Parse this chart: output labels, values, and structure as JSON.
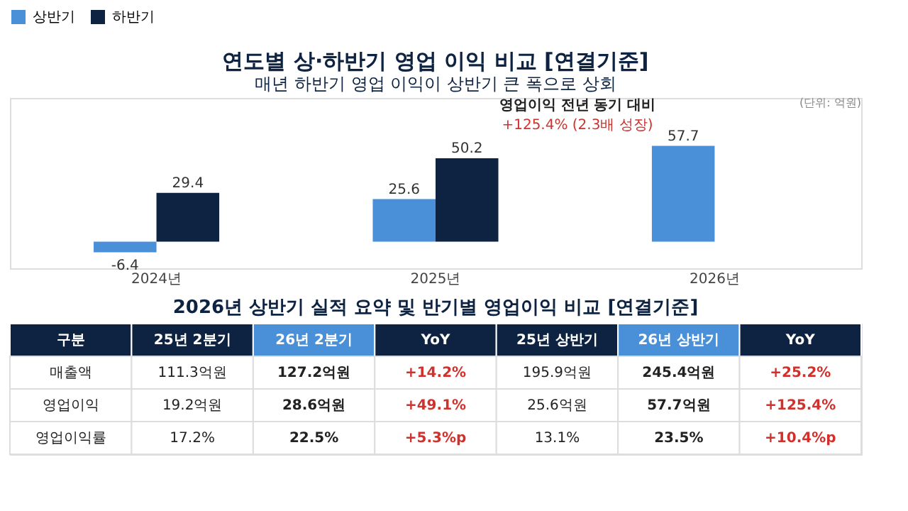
{
  "chart_data": {
    "type": "bar",
    "title": "연도별 상·하반기 영업 이익 비교 [연결기준]",
    "subtitle": "매년 하반기 영업 이익이 상반기 큰 폭으로 상회",
    "categories": [
      "2024년",
      "2025년",
      "2026년"
    ],
    "series": [
      {
        "name": "상반기",
        "color": "#4a90d9",
        "values": [
          -6.4,
          25.6,
          57.7
        ]
      },
      {
        "name": "하반기",
        "color": "#0d2341",
        "values": [
          29.4,
          50.2,
          null
        ]
      }
    ],
    "data_labels": true,
    "legend": "top left",
    "grid": false,
    "annotations": [
      "(단위: 억원)",
      "영업이익 전년 동기 대비",
      "+125.4% (2.3배 성장)",
      "2026년 상반기 실적 요약 및 반기별 영업이익 비교 [연결기준]",
      "구분",
      "25년 2분기",
      "26년 2분기",
      "YoY",
      "25년 상반기",
      "26년 상반기",
      "YoY",
      "매출액",
      "111.3억원",
      "127.2억원",
      "+14.2%",
      "195.9억원",
      "245.4억원",
      "+25.2%",
      "영업이익",
      "19.2억원",
      "28.6억원",
      "+49.1%",
      "25.6억원",
      "57.7억원",
      "+125.4%",
      "영업이익률",
      "17.2%",
      "22.5%",
      "+5.3%p",
      "13.1%",
      "23.5%",
      "+10.4%p"
    ]
  }
}
